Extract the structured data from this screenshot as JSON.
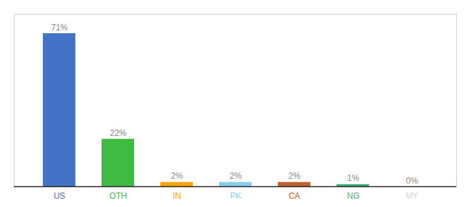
{
  "chart_data": {
    "type": "bar",
    "categories": [
      "US",
      "OTH",
      "IN",
      "PK",
      "CA",
      "NG",
      "MY"
    ],
    "values": [
      71,
      22,
      2,
      2,
      2,
      1,
      0
    ],
    "value_labels": [
      "71%",
      "22%",
      "2%",
      "2%",
      "2%",
      "1%",
      "0%"
    ],
    "colors": [
      "#4472C4",
      "#3EBA3E",
      "#FFA500",
      "#87CEEB",
      "#C0622B",
      "#3CB371",
      "#D3D3D3"
    ],
    "ylim": [
      0,
      80
    ],
    "grid": false,
    "data_labels": true,
    "tick_labels": "x"
  }
}
